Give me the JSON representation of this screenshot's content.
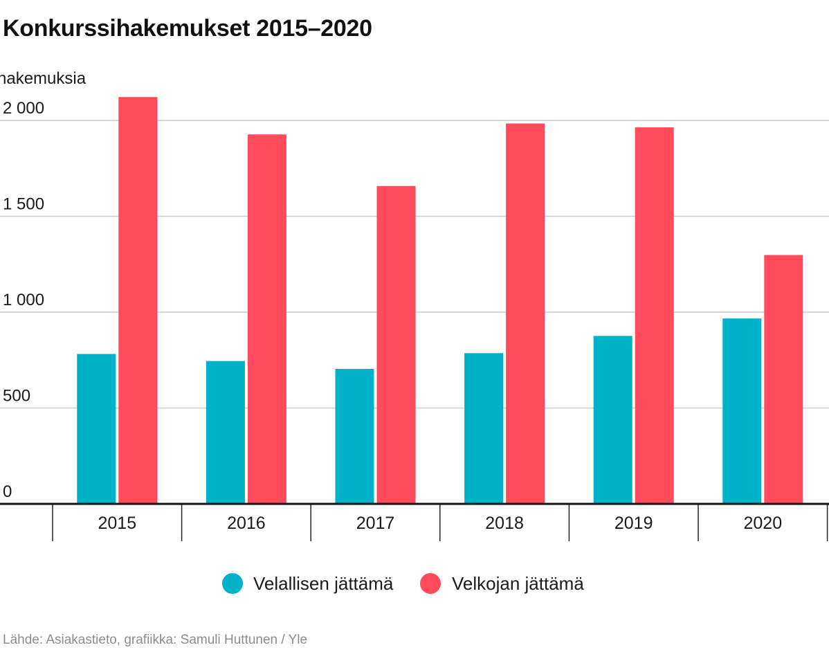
{
  "chart_data": {
    "type": "bar",
    "title": "Konkurssihakemukset 2015–2020",
    "ylabel": "hakemuksia",
    "xlabel": "",
    "categories": [
      "2015",
      "2016",
      "2017",
      "2018",
      "2019",
      "2020"
    ],
    "series": [
      {
        "name": "Velallisen jättämä",
        "color": "#00b2c8",
        "values": [
          782,
          745,
          704,
          786,
          876,
          967
        ]
      },
      {
        "name": "Velkojan jättämä",
        "color": "#ff4b5c",
        "values": [
          2122,
          1927,
          1658,
          1984,
          1964,
          1298
        ]
      }
    ],
    "ylim": [
      0,
      2000
    ],
    "yticks": [
      {
        "value": 0,
        "label": "0"
      },
      {
        "value": 500,
        "label": "500"
      },
      {
        "value": 1000,
        "label": "1 000"
      },
      {
        "value": 1500,
        "label": "1 500"
      },
      {
        "value": 2000,
        "label": "2 000"
      }
    ],
    "grid": true,
    "legend_position": "bottom"
  },
  "source": "Lähde: Asiakastieto, grafiikka: Samuli Huttunen / Yle"
}
